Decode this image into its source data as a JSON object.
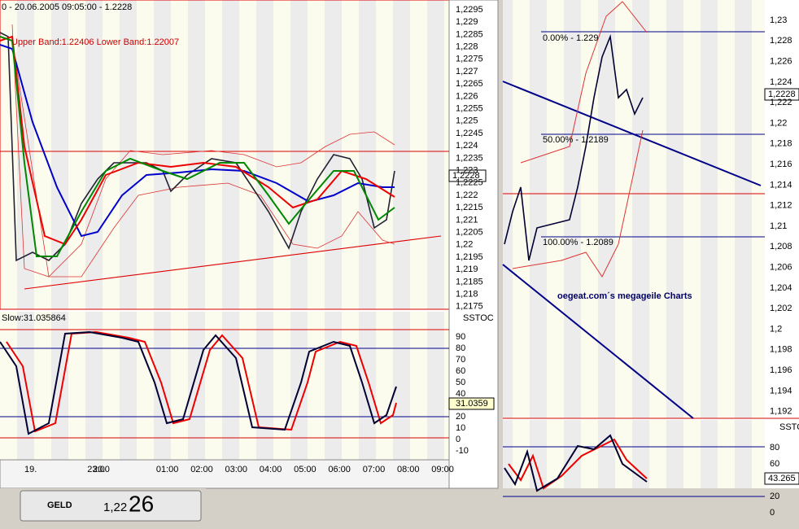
{
  "left_chart": {
    "header": "0 - 20.06.2005 09:05:00 - 1.2228",
    "bollinger": "Upper Band:1.22406 Lower Band:1.22007",
    "price_axis": [
      "1,2295",
      "1,229",
      "1,2285",
      "1,228",
      "1,2275",
      "1,227",
      "1,2265",
      "1,226",
      "1,2255",
      "1,225",
      "1,2245",
      "1,224",
      "1,2235",
      "1,223",
      "1,2225",
      "1,222",
      "1,2215",
      "1,221",
      "1,2205",
      "1,22",
      "1,2195",
      "1,219",
      "1,2185",
      "1,218",
      "1,2175"
    ],
    "price_current": "1,2228",
    "stoch_label": "Slow:31.035864",
    "stoch_title": "SSTOC",
    "stoch_axis": [
      "90",
      "80",
      "70",
      "60",
      "50",
      "40",
      "20",
      "10",
      "0",
      "-10"
    ],
    "stoch_current": "31.0359",
    "time_axis": [
      "19.",
      "23:00",
      "20.",
      "01:00",
      "02:00",
      "03:00",
      "04:00",
      "05:00",
      "06:00",
      "07:00",
      "08:00",
      "09:00"
    ]
  },
  "right_chart": {
    "price_axis": [
      "1,23",
      "1,228",
      "1,226",
      "1,224",
      "1,222",
      "1,22",
      "1,218",
      "1,216",
      "1,214",
      "1,212",
      "1,21",
      "1,208",
      "1,206",
      "1,204",
      "1,202",
      "1,2",
      "1,198",
      "1,196",
      "1,194",
      "1,192"
    ],
    "price_current": "1,2228",
    "fib_levels": [
      "0.00% - 1.229",
      "50.00% - 1.2189",
      "100.00% - 1.2089"
    ],
    "watermark": "oegeat.com´s megageile Charts",
    "stoch_title": "SSTOC",
    "stoch_axis": [
      "80",
      "60",
      "20",
      "0"
    ],
    "stoch_current": "43.265"
  },
  "quote": {
    "label": "GELD",
    "big_figure": "1,22",
    "pips": "26"
  }
}
